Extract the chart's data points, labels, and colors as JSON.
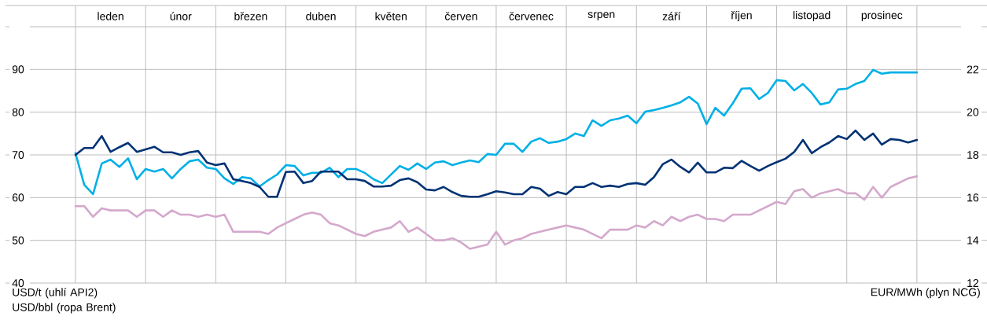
{
  "chart_data": {
    "type": "line",
    "ylabel": "USD/t (uhlí API2) USD/bbl (ropa Brent)",
    "y2label": "EUR/MWh (plyn NCG)",
    "categories": [
      null,
      null,
      null,
      null,
      "leden",
      null,
      null,
      null,
      null,
      null,
      null,
      null,
      "únor",
      null,
      null,
      null,
      null,
      null,
      null,
      null,
      "březen",
      null,
      null,
      null,
      null,
      null,
      null,
      null,
      "duben",
      null,
      null,
      null,
      null,
      null,
      null,
      null,
      "květen",
      null,
      null,
      null,
      null,
      null,
      null,
      null,
      "červen",
      null,
      null,
      null,
      null,
      null,
      null,
      null,
      "červenec",
      null,
      null,
      null,
      null,
      null,
      null,
      null,
      "srpen",
      null,
      null,
      null,
      null,
      null,
      null,
      null,
      "září",
      null,
      null,
      null,
      null,
      null,
      null,
      null,
      "říjen",
      null,
      null,
      null,
      null,
      null,
      null,
      null,
      "listopad",
      null,
      null,
      null,
      null,
      null,
      null,
      null,
      "prosinec",
      null,
      null,
      null,
      null
    ],
    "ylim": [
      40,
      100
    ],
    "yticks": [
      40,
      50,
      60,
      70,
      80,
      90,
      {
        "value": 100,
        "label": null
      }
    ],
    "y2lim": [
      12,
      24
    ],
    "y2ticks": [
      12,
      14,
      16,
      18,
      20,
      22
    ],
    "grid": true,
    "series": [
      {
        "color": "#00b0e6",
        "values": [
          70.4,
          63.0,
          60.8,
          68.0,
          68.9,
          67.2,
          69.2,
          64.3,
          66.7,
          66.1,
          66.7,
          64.5,
          66.7,
          68.5,
          68.9,
          67.0,
          66.7,
          64.5,
          63.2,
          64.8,
          64.5,
          62.6,
          64.1,
          65.4,
          67.6,
          67.4,
          65.2,
          65.8,
          65.8,
          67.0,
          64.8,
          66.7,
          66.7,
          65.8,
          64.3,
          63.4,
          65.4,
          67.4,
          66.5,
          68.0,
          66.7,
          68.2,
          68.5,
          67.6,
          68.2,
          68.7,
          68.3,
          70.2,
          70.0,
          72.6,
          72.6,
          70.7,
          73.1,
          73.9,
          72.8,
          73.1,
          73.7,
          75.0,
          74.4,
          78.1,
          76.8,
          78.1,
          78.5,
          79.2,
          77.4,
          80.1,
          80.5,
          81.0,
          81.6,
          82.3,
          83.6,
          82.0,
          77.2,
          81.0,
          79.2,
          82.1,
          85.5,
          85.6,
          83.1,
          84.5,
          87.5,
          87.3,
          85.1,
          86.6,
          84.5,
          81.8,
          82.3,
          85.3,
          85.5,
          86.6,
          87.3,
          89.9,
          89.0,
          89.3,
          89.3,
          89.3,
          89.3
        ]
      },
      {
        "color": "#003274",
        "values": [
          70.0,
          71.6,
          71.6,
          74.4,
          70.7,
          71.8,
          72.8,
          70.7,
          71.3,
          71.9,
          70.6,
          70.6,
          70.0,
          70.6,
          70.9,
          68.2,
          67.6,
          68.0,
          64.3,
          63.9,
          63.4,
          62.5,
          60.2,
          60.2,
          66.0,
          66.1,
          63.4,
          63.9,
          66.1,
          66.1,
          66.1,
          64.3,
          64.3,
          63.9,
          62.6,
          62.6,
          62.8,
          64.1,
          64.5,
          63.6,
          61.9,
          61.7,
          62.5,
          61.3,
          60.4,
          60.2,
          60.2,
          60.8,
          61.5,
          61.2,
          60.8,
          60.8,
          62.5,
          62.1,
          60.4,
          61.3,
          60.8,
          62.5,
          62.5,
          63.4,
          62.5,
          62.8,
          62.5,
          63.2,
          63.4,
          63.0,
          64.8,
          67.8,
          68.9,
          67.2,
          65.9,
          68.2,
          65.9,
          65.9,
          67.0,
          66.9,
          68.6,
          67.4,
          66.3,
          67.4,
          68.3,
          69.1,
          70.7,
          73.5,
          70.4,
          71.8,
          72.9,
          74.4,
          73.7,
          75.7,
          73.5,
          75.0,
          72.4,
          73.7,
          73.5,
          72.9,
          73.5
        ]
      },
      {
        "color": "#d4a8cc",
        "axis": "y2",
        "values": [
          15.6,
          15.6,
          15.1,
          15.5,
          15.4,
          15.4,
          15.4,
          15.1,
          15.4,
          15.4,
          15.1,
          15.4,
          15.2,
          15.2,
          15.1,
          15.2,
          15.1,
          15.2,
          14.4,
          14.4,
          14.4,
          14.4,
          14.3,
          14.6,
          14.8,
          15.0,
          15.2,
          15.3,
          15.2,
          14.8,
          14.7,
          14.5,
          14.3,
          14.2,
          14.4,
          14.5,
          14.6,
          14.9,
          14.4,
          14.6,
          14.3,
          14.0,
          14.0,
          14.1,
          13.9,
          13.6,
          13.7,
          13.8,
          14.4,
          13.8,
          14.0,
          14.1,
          14.3,
          14.4,
          14.5,
          14.6,
          14.7,
          14.6,
          14.5,
          14.3,
          14.1,
          14.5,
          14.5,
          14.5,
          14.7,
          14.6,
          14.9,
          14.7,
          15.1,
          14.9,
          15.1,
          15.2,
          15.0,
          15.0,
          14.9,
          15.2,
          15.2,
          15.2,
          15.4,
          15.6,
          15.8,
          15.7,
          16.3,
          16.4,
          16.0,
          16.2,
          16.3,
          16.4,
          16.2,
          16.2,
          15.9,
          16.5,
          16.0,
          16.5,
          16.7,
          16.9,
          17.0
        ]
      }
    ]
  }
}
